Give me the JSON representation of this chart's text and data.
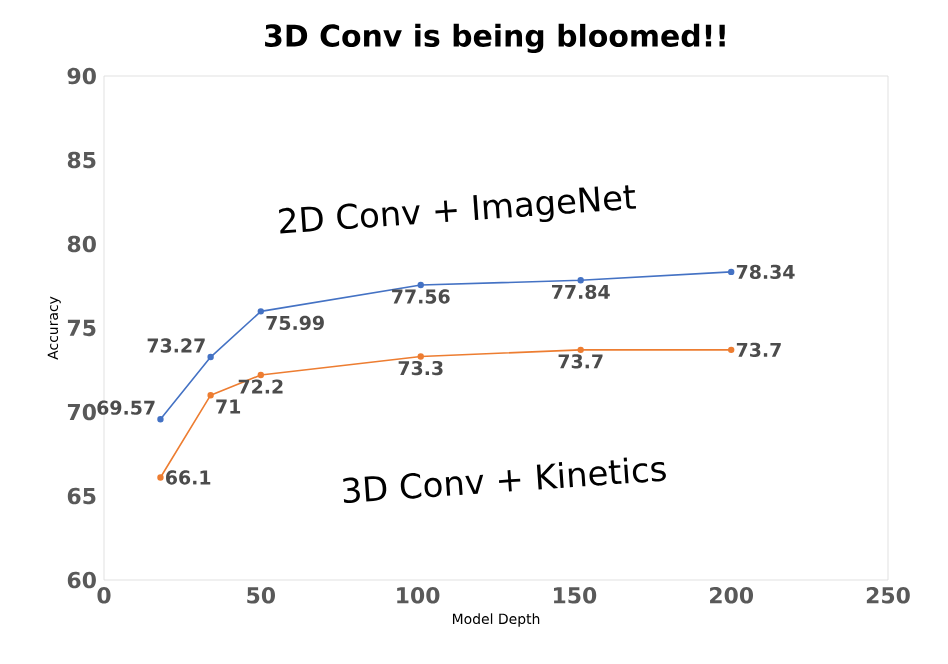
{
  "chart_data": {
    "type": "line",
    "title": "3D Conv is being bloomed!!",
    "xlabel": "Model Depth",
    "ylabel": "Accuracy",
    "series": [
      {
        "name": "2D Conv + ImageNet",
        "color": "#4472c4",
        "x": [
          18,
          34,
          50,
          101,
          152,
          200
        ],
        "values": [
          69.57,
          73.27,
          75.99,
          77.56,
          77.84,
          78.34
        ]
      },
      {
        "name": "3D Conv + Kinetics",
        "color": "#ed7d31",
        "x": [
          18,
          34,
          50,
          101,
          152,
          200
        ],
        "values": [
          66.1,
          71,
          72.2,
          73.3,
          73.7,
          73.7
        ]
      }
    ],
    "xlim": [
      0,
      250
    ],
    "xticks": [
      0,
      50,
      100,
      150,
      200,
      250
    ],
    "ylim": [
      60,
      90
    ],
    "yticks": [
      60,
      65,
      70,
      75,
      80,
      85,
      90
    ],
    "data_labels": true,
    "marker": "circle",
    "grid": false,
    "legend": false
  }
}
